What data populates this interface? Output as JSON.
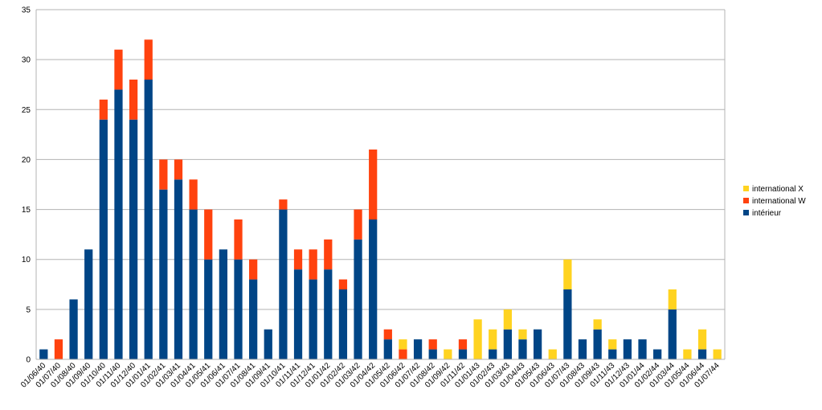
{
  "chart_data": {
    "type": "bar",
    "stacked": true,
    "title": "",
    "xlabel": "",
    "ylabel": "",
    "ylim": [
      0,
      35
    ],
    "yticks": [
      0,
      5,
      10,
      15,
      20,
      25,
      30,
      35
    ],
    "grid": true,
    "legend_position": "right",
    "categories": [
      "01/06/40",
      "01/07/40",
      "01/08/40",
      "01/09/40",
      "01/10/40",
      "01/11/40",
      "01/12/40",
      "01/01/41",
      "01/02/41",
      "01/03/41",
      "01/04/41",
      "01/05/41",
      "01/06/41",
      "01/07/41",
      "01/08/41",
      "01/09/41",
      "01/10/41",
      "01/11/41",
      "01/12/41",
      "01/01/42",
      "01/02/42",
      "01/03/42",
      "01/04/42",
      "01/05/42",
      "01/06/42",
      "01/07/42",
      "01/08/42",
      "01/09/42",
      "01/11/42",
      "01/01/43",
      "01/02/43",
      "01/03/43",
      "01/04/43",
      "01/05/43",
      "01/06/43",
      "01/07/43",
      "01/08/43",
      "01/09/43",
      "01/11/43",
      "01/12/43",
      "01/01/44",
      "01/02/44",
      "01/03/44",
      "01/05/44",
      "01/06/44",
      "01/07/44"
    ],
    "series": [
      {
        "name": "intérieur",
        "color": "#004586",
        "values": [
          1,
          0,
          6,
          11,
          24,
          27,
          24,
          28,
          17,
          18,
          15,
          10,
          11,
          10,
          8,
          3,
          15,
          9,
          8,
          9,
          7,
          12,
          14,
          2,
          0,
          2,
          1,
          0,
          1,
          0,
          1,
          3,
          2,
          3,
          0,
          7,
          2,
          3,
          1,
          2,
          2,
          1,
          5,
          0,
          1,
          0
        ]
      },
      {
        "name": "international W",
        "color": "#ff420e",
        "values": [
          0,
          2,
          0,
          0,
          2,
          4,
          4,
          4,
          3,
          2,
          3,
          5,
          0,
          4,
          2,
          0,
          1,
          2,
          3,
          3,
          1,
          3,
          7,
          1,
          1,
          0,
          1,
          0,
          1,
          0,
          0,
          0,
          0,
          0,
          0,
          0,
          0,
          0,
          0,
          0,
          0,
          0,
          0,
          0,
          0,
          0
        ]
      },
      {
        "name": "international X",
        "color": "#ffd320",
        "values": [
          0,
          0,
          0,
          0,
          0,
          0,
          0,
          0,
          0,
          0,
          0,
          0,
          0,
          0,
          0,
          0,
          0,
          0,
          0,
          0,
          0,
          0,
          0,
          0,
          1,
          0,
          0,
          1,
          0,
          4,
          2,
          2,
          1,
          0,
          1,
          3,
          0,
          1,
          1,
          0,
          0,
          0,
          2,
          1,
          2,
          1
        ]
      }
    ],
    "legend_order": [
      "international X",
      "international W",
      "intérieur"
    ]
  }
}
